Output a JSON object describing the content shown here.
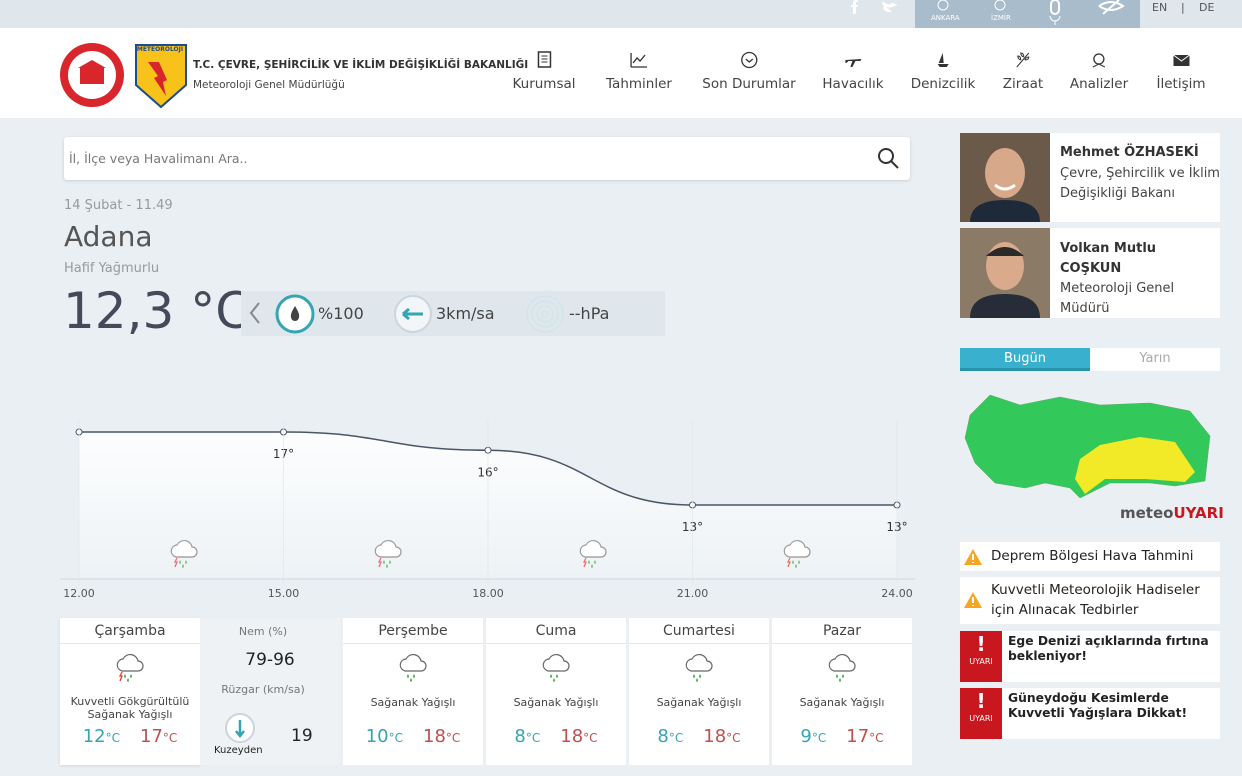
{
  "topbar": {
    "cities": [
      "ANKARA",
      "İZMİR"
    ],
    "languages": [
      "EN",
      "DE"
    ],
    "separator": "|"
  },
  "header": {
    "ministry": "T.C. ÇEVRE, ŞEHİRCİLİK VE İKLİM DEĞİŞİKLİĞİ BAKANLIĞI",
    "subtitle": "Meteoroloji Genel Müdürlüğü",
    "logo_text": "METEOROLOJİ"
  },
  "nav": [
    "Kurumsal",
    "Tahminler",
    "Son Durumlar",
    "Havacılık",
    "Denizcilik",
    "Ziraat",
    "Analizler",
    "İletişim"
  ],
  "search": {
    "placeholder": "İl, İlçe veya Havalimanı Ara.."
  },
  "current": {
    "datetime": "14 Şubat - 11.49",
    "city": "Adana",
    "condition": "Hafif Yağmurlu",
    "temperature": "12,3 °C",
    "humidity": "%100",
    "wind": "3km/sa",
    "pressure": "--hPa"
  },
  "chart_data": {
    "type": "line",
    "x": [
      "12.00",
      "15.00",
      "18.00",
      "21.00",
      "24.00"
    ],
    "values": [
      17,
      17,
      16,
      13,
      13
    ],
    "value_labels": [
      null,
      "17°",
      "16°",
      "13°",
      "13°"
    ],
    "color": "#4a5566"
  },
  "forecast": {
    "unit": "°C",
    "days": [
      {
        "day": "Çarşamba",
        "condition": "Kuvvetli Gökgürültülü Sağanak Yağışlı",
        "min": 12,
        "max": 17
      },
      {
        "day": "Perşembe",
        "condition": "Sağanak Yağışlı",
        "min": 10,
        "max": 18
      },
      {
        "day": "Cuma",
        "condition": "Sağanak Yağışlı",
        "min": 8,
        "max": 18
      },
      {
        "day": "Cumartesi",
        "condition": "Sağanak Yağışlı",
        "min": 8,
        "max": 18
      },
      {
        "day": "Pazar",
        "condition": "Sağanak Yağışlı",
        "min": 9,
        "max": 17
      }
    ],
    "details": {
      "humidity_label": "Nem (%)",
      "humidity": "79-96",
      "wind_label": "Rüzgar (km/sa)",
      "wind_direction": "Kuzeyden",
      "wind_speed": 19
    }
  },
  "sidebar": {
    "people": [
      {
        "name": "Mehmet ÖZHASEKİ",
        "title": "Çevre, Şehircilik ve İklim Değişikliği Bakanı"
      },
      {
        "name": "Volkan Mutlu COŞKUN",
        "title": "Meteoroloji Genel Müdürü"
      }
    ],
    "tabs": [
      "Bugün",
      "Yarın"
    ],
    "map_brand": [
      "meteo",
      "UYARI"
    ],
    "links": [
      "Deprem Bölgesi Hava Tahmini",
      "Kuvvetli Meteorolojik Hadiseler için Alınacak Tedbirler"
    ],
    "warnings": [
      {
        "badge": "UYARI",
        "text": "Ege Denizi açıklarında fırtına bekleniyor!"
      },
      {
        "badge": "UYARI",
        "text": "Güneydoğu Kesimlerde Kuvvetli Yağışlara Dikkat!"
      }
    ]
  }
}
